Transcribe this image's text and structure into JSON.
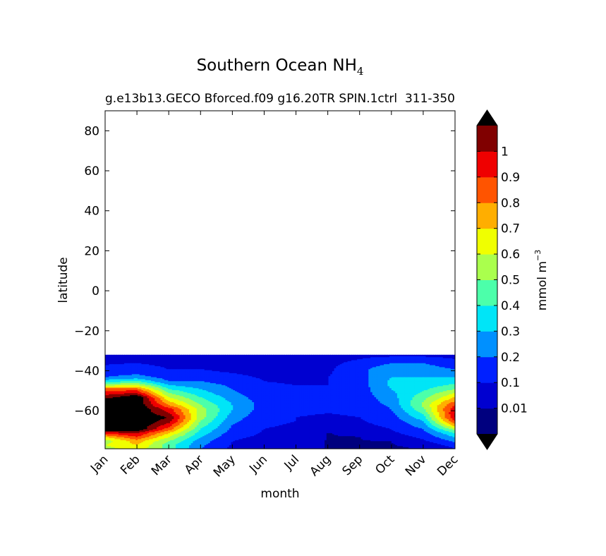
{
  "chart_data": {
    "type": "heatmap",
    "title": "Southern Ocean NH",
    "title_subscript": "4",
    "subtitle_left": "g.e13b13.GECO Bforced.f09 g16.20TR SPIN.1ctrl",
    "subtitle_right": "311-350",
    "xlabel": "month",
    "ylabel": "latitude",
    "x_ticks": [
      "Jan",
      "Feb",
      "Mar",
      "Apr",
      "May",
      "Jun",
      "Jul",
      "Aug",
      "Sep",
      "Oct",
      "Nov",
      "Dec"
    ],
    "y_ticks": [
      80,
      60,
      40,
      20,
      0,
      -20,
      -40,
      -60
    ],
    "y_tick_labels": [
      "80",
      "60",
      "40",
      "20",
      "0",
      "−20",
      "−40",
      "−60"
    ],
    "ylim": [
      -79,
      90
    ],
    "xlim": [
      0,
      11
    ],
    "data_lat_range": [
      -79,
      -32
    ],
    "colorbar": {
      "label": "mmol m",
      "label_superscript": "−3",
      "levels": [
        0,
        0.01,
        0.1,
        0.2,
        0.3,
        0.4,
        0.5,
        0.6,
        0.7,
        0.8,
        0.9,
        1.0,
        1.1
      ],
      "tick_labels": [
        "0.01",
        "0.1",
        "0.2",
        "0.3",
        "0.4",
        "0.5",
        "0.6",
        "0.7",
        "0.8",
        "0.9",
        "1"
      ],
      "colors": [
        "#00007f",
        "#0000d0",
        "#0020ff",
        "#0090ff",
        "#00e5f7",
        "#4cffaa",
        "#aaff4d",
        "#f0ff00",
        "#ffae00",
        "#ff5400",
        "#ef0000",
        "#800000"
      ],
      "under_color": "#000000",
      "over_color": "#000000"
    },
    "lat": [
      -79,
      -77,
      -75,
      -73,
      -71,
      -69,
      -67,
      -65,
      -63,
      -61,
      -59,
      -57,
      -55,
      -53,
      -51,
      -49,
      -47,
      -45,
      -43,
      -41,
      -39,
      -37,
      -35,
      -33,
      -32
    ],
    "values_by_month": [
      [
        0.55,
        0.6,
        0.55,
        0.7,
        0.95,
        1.2,
        1.2,
        1.2,
        1.2,
        1.2,
        1.2,
        1.2,
        1.2,
        1.05,
        0.95,
        0.85,
        0.55,
        0.35,
        0.2,
        0.15,
        0.12,
        0.1,
        0.08,
        0.05,
        0.02
      ],
      [
        0.65,
        0.7,
        0.75,
        0.9,
        1.0,
        1.2,
        1.2,
        1.2,
        1.2,
        1.2,
        1.2,
        1.2,
        1.2,
        1.2,
        1.0,
        0.85,
        0.6,
        0.4,
        0.25,
        0.18,
        0.15,
        0.12,
        0.08,
        0.05,
        0.02
      ],
      [
        0.45,
        0.45,
        0.5,
        0.6,
        0.7,
        0.85,
        0.95,
        1.05,
        1.1,
        1.0,
        0.95,
        0.8,
        0.7,
        0.6,
        0.5,
        0.4,
        0.3,
        0.2,
        0.15,
        0.12,
        0.1,
        0.08,
        0.06,
        0.05,
        0.02
      ],
      [
        0.2,
        0.22,
        0.25,
        0.3,
        0.35,
        0.4,
        0.45,
        0.5,
        0.55,
        0.55,
        0.55,
        0.5,
        0.45,
        0.4,
        0.35,
        0.3,
        0.25,
        0.2,
        0.15,
        0.12,
        0.1,
        0.08,
        0.06,
        0.05,
        0.02
      ],
      [
        0.08,
        0.09,
        0.1,
        0.12,
        0.15,
        0.18,
        0.2,
        0.22,
        0.25,
        0.28,
        0.3,
        0.3,
        0.28,
        0.25,
        0.22,
        0.2,
        0.18,
        0.15,
        0.12,
        0.1,
        0.08,
        0.07,
        0.05,
        0.04,
        0.02
      ],
      [
        0.05,
        0.06,
        0.07,
        0.08,
        0.09,
        0.1,
        0.11,
        0.12,
        0.13,
        0.14,
        0.15,
        0.16,
        0.15,
        0.14,
        0.13,
        0.12,
        0.11,
        0.1,
        0.09,
        0.08,
        0.07,
        0.06,
        0.05,
        0.04,
        0.02
      ],
      [
        0.04,
        0.05,
        0.05,
        0.06,
        0.07,
        0.08,
        0.09,
        0.1,
        0.1,
        0.11,
        0.12,
        0.12,
        0.12,
        0.11,
        0.11,
        0.1,
        0.1,
        0.09,
        0.09,
        0.08,
        0.07,
        0.06,
        0.05,
        0.04,
        0.02
      ],
      [
        0.005,
        0.005,
        0.006,
        0.008,
        0.009,
        0.03,
        0.06,
        0.08,
        0.09,
        0.1,
        0.1,
        0.1,
        0.11,
        0.11,
        0.11,
        0.11,
        0.1,
        0.1,
        0.1,
        0.09,
        0.08,
        0.07,
        0.06,
        0.04,
        0.02
      ],
      [
        0.005,
        0.006,
        0.008,
        0.009,
        0.02,
        0.06,
        0.08,
        0.09,
        0.1,
        0.11,
        0.12,
        0.13,
        0.14,
        0.14,
        0.15,
        0.15,
        0.15,
        0.15,
        0.16,
        0.17,
        0.18,
        0.16,
        0.12,
        0.08,
        0.03
      ],
      [
        0.006,
        0.008,
        0.009,
        0.05,
        0.08,
        0.1,
        0.12,
        0.14,
        0.16,
        0.18,
        0.2,
        0.22,
        0.24,
        0.26,
        0.28,
        0.3,
        0.32,
        0.32,
        0.3,
        0.28,
        0.25,
        0.22,
        0.18,
        0.12,
        0.05
      ],
      [
        0.008,
        0.02,
        0.08,
        0.12,
        0.16,
        0.2,
        0.25,
        0.3,
        0.36,
        0.42,
        0.48,
        0.52,
        0.5,
        0.46,
        0.42,
        0.38,
        0.35,
        0.32,
        0.3,
        0.28,
        0.25,
        0.22,
        0.18,
        0.12,
        0.05
      ],
      [
        0.08,
        0.15,
        0.22,
        0.3,
        0.4,
        0.55,
        0.75,
        0.9,
        1.0,
        1.0,
        0.98,
        0.9,
        0.8,
        0.7,
        0.6,
        0.5,
        0.42,
        0.35,
        0.3,
        0.25,
        0.2,
        0.15,
        0.12,
        0.08,
        0.04
      ]
    ]
  }
}
